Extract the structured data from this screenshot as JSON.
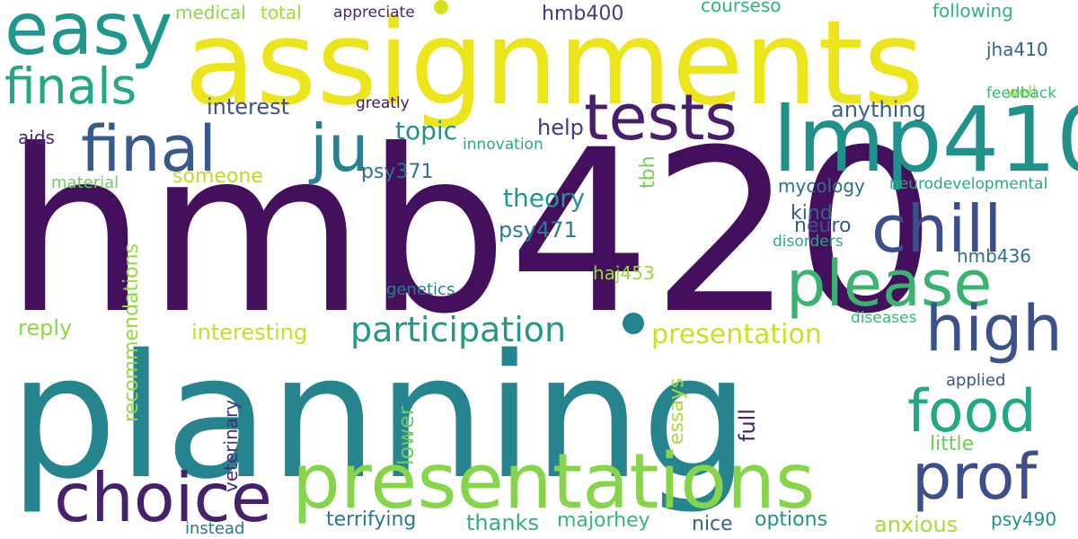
{
  "words": [
    {
      "text": "hmb420",
      "color": "#440f5d",
      "rotate": 0
    },
    {
      "text": "planning",
      "color": "#25848e",
      "rotate": 0
    },
    {
      "text": "assignments",
      "color": "#ece51b",
      "rotate": 0
    },
    {
      "text": "lmp410",
      "color": "#21918c",
      "rotate": 0
    },
    {
      "text": "presentations",
      "color": "#86d549",
      "rotate": 0
    },
    {
      "text": "easy",
      "color": "#1f978b",
      "rotate": 0
    },
    {
      "text": "choice",
      "color": "#45216c",
      "rotate": 0
    },
    {
      "text": "chill",
      "color": "#3c4f8a",
      "rotate": 0
    },
    {
      "text": "final",
      "color": "#38598c",
      "rotate": 0
    },
    {
      "text": "ju",
      "color": "#26828e",
      "rotate": 0
    },
    {
      "text": "tests",
      "color": "#461e6b",
      "rotate": 0
    },
    {
      "text": "please",
      "color": "#3ab370",
      "rotate": 0
    },
    {
      "text": "high",
      "color": "#3b518b",
      "rotate": 0
    },
    {
      "text": "prof",
      "color": "#3d4e8a",
      "rotate": 0
    },
    {
      "text": "food",
      "color": "#24a784",
      "rotate": 0
    },
    {
      "text": "finals",
      "color": "#22a884",
      "rotate": 0
    },
    {
      "text": "participation",
      "color": "#22978a",
      "rotate": 0
    },
    {
      "text": "presentation",
      "color": "#cbe11e",
      "rotate": 0
    },
    {
      "text": "topic",
      "color": "#21918c",
      "rotate": 0
    },
    {
      "text": "theory",
      "color": "#21968c",
      "rotate": 0
    },
    {
      "text": "psy471",
      "color": "#297b8e",
      "rotate": 0
    },
    {
      "text": "interest",
      "color": "#3b518b",
      "rotate": 0
    },
    {
      "text": "anything",
      "color": "#34618d",
      "rotate": 0
    },
    {
      "text": "help",
      "color": "#443983",
      "rotate": 0
    },
    {
      "text": "psy371",
      "color": "#2c728e",
      "rotate": 0
    },
    {
      "text": "someone",
      "color": "#bade28",
      "rotate": 0
    },
    {
      "text": "interesting",
      "color": "#c5e021",
      "rotate": 0
    },
    {
      "text": "reply",
      "color": "#8ed645",
      "rotate": 0
    },
    {
      "text": "hmb400",
      "color": "#433d84",
      "rotate": 0
    },
    {
      "text": "courseso",
      "color": "#2eb37c",
      "rotate": 0
    },
    {
      "text": "following",
      "color": "#2eb37c",
      "rotate": 0
    },
    {
      "text": "jha410",
      "color": "#33638d",
      "rotate": 0
    },
    {
      "text": "total",
      "color": "#a5db36",
      "rotate": 0
    },
    {
      "text": "medical",
      "color": "#8ed645",
      "rotate": 0
    },
    {
      "text": "appreciate",
      "color": "#482576",
      "rotate": 0
    },
    {
      "text": "well",
      "color": "#9fda3a",
      "rotate": 0
    },
    {
      "text": "feedback",
      "color": "#3aba76",
      "rotate": 0
    },
    {
      "text": "greatly",
      "color": "#471164",
      "rotate": 0
    },
    {
      "text": "innovation",
      "color": "#25ab82",
      "rotate": 0
    },
    {
      "text": "aids",
      "color": "#482475",
      "rotate": 0
    },
    {
      "text": "material",
      "color": "#6ccd5a",
      "rotate": 0
    },
    {
      "text": "mycology",
      "color": "#2c718e",
      "rotate": 0
    },
    {
      "text": "neurodevelopmental",
      "color": "#25ab82",
      "rotate": 0
    },
    {
      "text": "kind",
      "color": "#33638d",
      "rotate": 0
    },
    {
      "text": "neuro",
      "color": "#3a548c",
      "rotate": 0
    },
    {
      "text": "disorders",
      "color": "#25ab82",
      "rotate": 0
    },
    {
      "text": "hmb436",
      "color": "#2e6f8e",
      "rotate": 0
    },
    {
      "text": "haj453",
      "color": "#98d83e",
      "rotate": 0
    },
    {
      "text": "genetics",
      "color": "#277f8e",
      "rotate": 0
    },
    {
      "text": "diseases",
      "color": "#35b779",
      "rotate": 0
    },
    {
      "text": "applied",
      "color": "#3b528b",
      "rotate": 0
    },
    {
      "text": "little",
      "color": "#6ccd5a",
      "rotate": 0
    },
    {
      "text": "tbh",
      "color": "#75d054",
      "rotate": -90
    },
    {
      "text": "recommendations",
      "color": "#95d840",
      "rotate": -90
    },
    {
      "text": "veterinary",
      "color": "#472c7a",
      "rotate": -90
    },
    {
      "text": "lower",
      "color": "#6ccd5a",
      "rotate": -90
    },
    {
      "text": "essays",
      "color": "#a8db34",
      "rotate": -90
    },
    {
      "text": "full",
      "color": "#482173",
      "rotate": -90
    },
    {
      "text": "terrifying",
      "color": "#2a778e",
      "rotate": 0
    },
    {
      "text": "thanks",
      "color": "#2db27d",
      "rotate": 0
    },
    {
      "text": "majorhey",
      "color": "#35b779",
      "rotate": 0
    },
    {
      "text": "nice",
      "color": "#33638d",
      "rotate": 0
    },
    {
      "text": "options",
      "color": "#21918c",
      "rotate": 0
    },
    {
      "text": "anxious",
      "color": "#a5db36",
      "rotate": 0
    },
    {
      "text": "psy490",
      "color": "#21908d",
      "rotate": 0
    },
    {
      "text": "instead",
      "color": "#2a778e",
      "rotate": 0
    }
  ]
}
